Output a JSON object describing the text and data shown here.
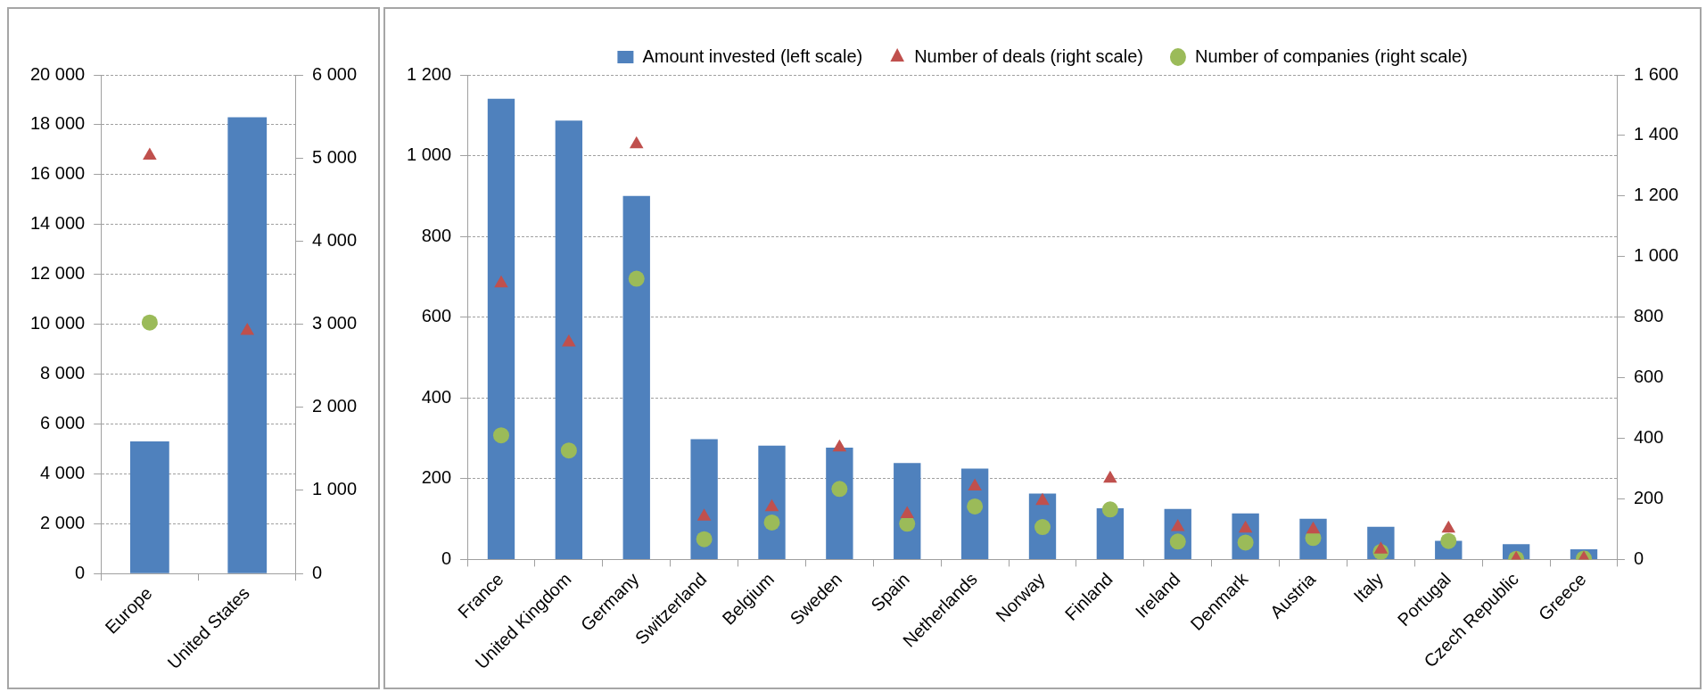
{
  "chart_data": [
    {
      "type": "bar",
      "categories": [
        "Europe",
        "United States"
      ],
      "series": [
        {
          "color": "#4f81bd",
          "values": [
            5300,
            18300
          ]
        },
        {
          "type": "scatter",
          "axis": "y2",
          "marker": "triangle",
          "color": "#c0504d",
          "values": [
            5030,
            2920
          ]
        },
        {
          "type": "scatter",
          "axis": "y2",
          "marker": "circle",
          "color": "#9bbb59",
          "values": [
            3020,
            null
          ]
        }
      ],
      "ylim": [
        0,
        20000
      ],
      "yticks": [
        0,
        {
          "value": 2000,
          "label": "2 000"
        },
        {
          "value": 4000,
          "label": "4 000"
        },
        {
          "value": 6000,
          "label": "6 000"
        },
        {
          "value": 8000,
          "label": "8 000"
        },
        {
          "value": 10000,
          "label": "10 000"
        },
        {
          "value": 12000,
          "label": "12 000"
        },
        {
          "value": 14000,
          "label": "14 000"
        },
        {
          "value": 16000,
          "label": "16 000"
        },
        {
          "value": 18000,
          "label": "18 000"
        },
        {
          "value": 20000,
          "label": "20 000"
        }
      ],
      "y2lim": [
        0,
        6000
      ],
      "y2ticks": [
        0,
        {
          "value": 1000,
          "label": "1 000"
        },
        {
          "value": 2000,
          "label": "2 000"
        },
        {
          "value": 3000,
          "label": "3 000"
        },
        {
          "value": 4000,
          "label": "4 000"
        },
        {
          "value": 5000,
          "label": "5 000"
        },
        {
          "value": 6000,
          "label": "6 000"
        }
      ],
      "grid": "y",
      "legend": false
    },
    {
      "type": "bar",
      "categories": [
        "France",
        "United Kingdom",
        "Germany",
        "Switzerland",
        "Belgium",
        "Sweden",
        "Spain",
        "Netherlands",
        "Norway",
        "Finland",
        "Ireland",
        "Denmark",
        "Austria",
        "Italy",
        "Portugal",
        "Czech Republic",
        "Greece"
      ],
      "series": [
        {
          "name": "Amount invested (left scale)",
          "color": "#4f81bd",
          "values": [
            1141,
            1087,
            900,
            298,
            282,
            277,
            239,
            225,
            163,
            127,
            125,
            114,
            101,
            81,
            46,
            38,
            25
          ]
        },
        {
          "type": "scatter",
          "axis": "y2",
          "marker": "triangle",
          "name": "Number of deals (right scale)",
          "color": "#c0504d",
          "values": [
            912,
            717,
            1371,
            142,
            173,
            370,
            150,
            241,
            193,
            267,
            107,
            102,
            99,
            33,
            102,
            2,
            3
          ]
        },
        {
          "type": "scatter",
          "axis": "y2",
          "marker": "circle",
          "name": "Number of companies (right scale)",
          "color": "#9bbb59",
          "values": [
            410,
            360,
            927,
            67,
            122,
            233,
            118,
            175,
            107,
            165,
            59,
            56,
            71,
            25,
            61,
            2,
            3
          ]
        }
      ],
      "ylim": [
        0,
        1200
      ],
      "yticks": [
        0,
        200,
        400,
        600,
        800,
        {
          "value": 1000,
          "label": "1 000"
        },
        {
          "value": 1200,
          "label": "1 200"
        }
      ],
      "y2lim": [
        0,
        1600
      ],
      "y2ticks": [
        0,
        200,
        400,
        600,
        800,
        {
          "value": 1000,
          "label": "1 000"
        },
        {
          "value": 1200,
          "label": "1 200"
        },
        {
          "value": 1400,
          "label": "1 400"
        },
        {
          "value": 1600,
          "label": "1 600"
        }
      ],
      "grid": "y",
      "legend": "top"
    }
  ]
}
